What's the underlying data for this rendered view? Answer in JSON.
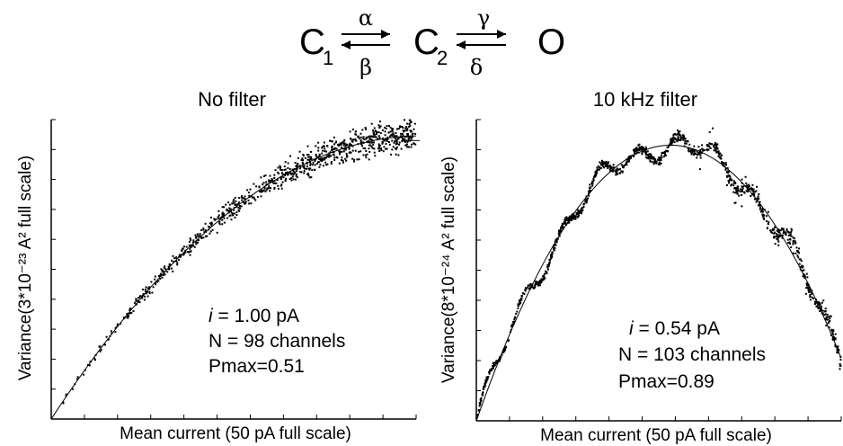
{
  "scheme": {
    "states": [
      "C",
      "C",
      "O"
    ],
    "subscripts": [
      "1",
      "2",
      ""
    ],
    "forward_rates": [
      "α",
      "γ"
    ],
    "backward_rates": [
      "β",
      "δ"
    ]
  },
  "chart_data": [
    {
      "type": "scatter",
      "title": "No filter",
      "xlabel": "Mean current (50 pA full scale)",
      "ylabel": "Variance(3*10⁻²³ A² full scale)",
      "xlim": [
        0,
        1
      ],
      "ylim": [
        0,
        1
      ],
      "ticks": "unlabeled",
      "grid": false,
      "fit": {
        "type": "parabola",
        "x": [
          0,
          0.2,
          0.4,
          0.6,
          0.8,
          1.0
        ],
        "y": [
          0,
          0.35,
          0.6,
          0.78,
          0.9,
          0.95
        ]
      },
      "points": {
        "x_start": 0.0,
        "x_end": 1.0,
        "y_shape": "parabola",
        "scatter_amplitude": "increases with x"
      },
      "annotations": [
        {
          "prefix": "i",
          "text": " = 1.00 pA"
        },
        {
          "prefix": "",
          "text": "N = 98 channels"
        },
        {
          "prefix": "",
          "text": "Pmax=0.51"
        }
      ]
    },
    {
      "type": "scatter",
      "title": "10 kHz filter",
      "xlabel": "Mean current (50 pA full scale)",
      "ylabel": "Variance(8*10⁻²⁴ A² full scale)",
      "xlim": [
        0,
        1
      ],
      "ylim": [
        0,
        1
      ],
      "ticks": "unlabeled",
      "grid": false,
      "fit": {
        "type": "parabola",
        "x": [
          0,
          0.2,
          0.4,
          0.6,
          0.8,
          1.0
        ],
        "y": [
          0,
          0.62,
          0.88,
          0.88,
          0.62,
          0.25
        ]
      },
      "points": {
        "x_start": 0.0,
        "x_end": 1.0,
        "y_shape": "parabola",
        "scatter_amplitude": "oscillating"
      },
      "annotations": [
        {
          "prefix": "i",
          "text": " = 0.54 pA"
        },
        {
          "prefix": "",
          "text": "N = 103 channels"
        },
        {
          "prefix": "",
          "text": "Pmax=0.89"
        }
      ]
    }
  ]
}
